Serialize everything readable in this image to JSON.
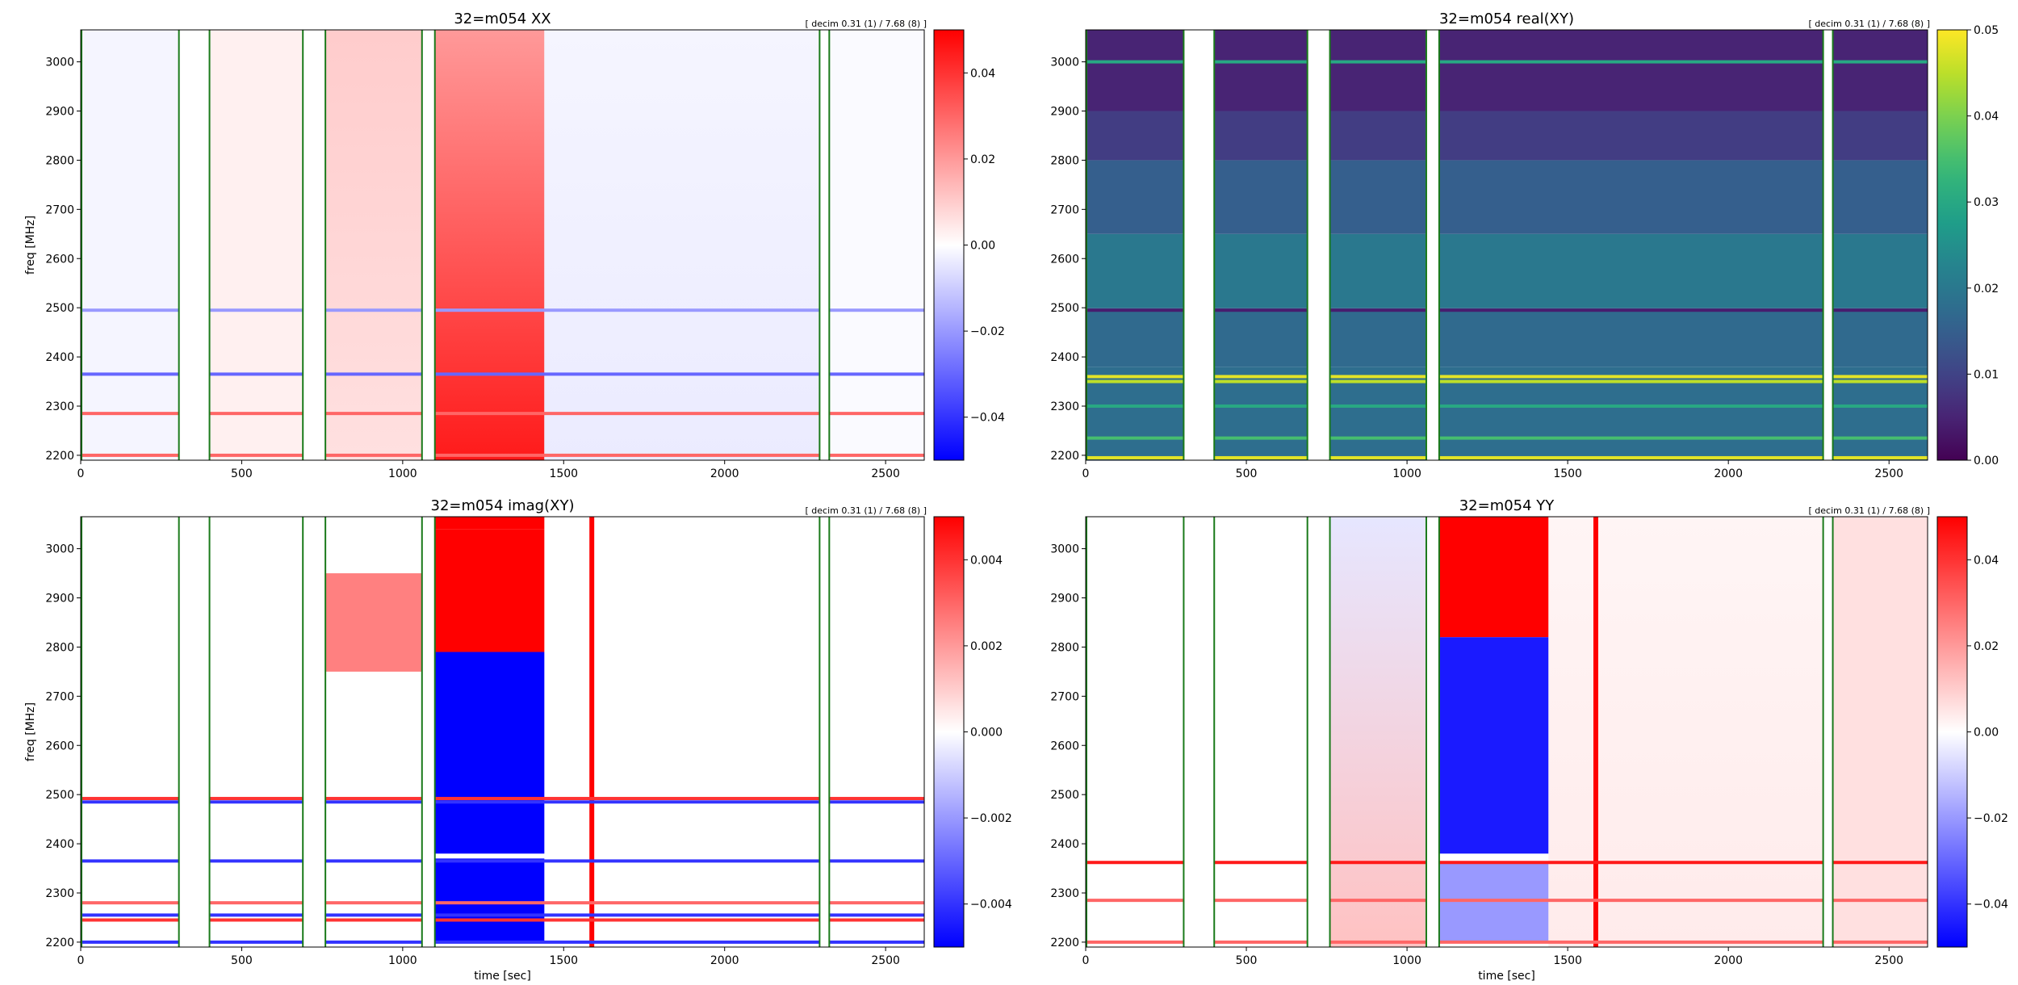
{
  "chart_data": [
    {
      "type": "heatmap",
      "title": "32=m054  XX",
      "note": "[ decim 0.31 (1) / 7.68 (8) ]",
      "xlabel": "",
      "ylabel": "freq [MHz]",
      "xlim": [
        0,
        2620
      ],
      "ylim": [
        2190,
        3065
      ],
      "xticks": [
        "0",
        "500",
        "1000",
        "1500",
        "2000",
        "2500"
      ],
      "yticks": [
        "2200",
        "2300",
        "2400",
        "2500",
        "2600",
        "2700",
        "2800",
        "2900",
        "3000"
      ],
      "colormap": "bwr",
      "clim": [
        -0.05,
        0.05
      ],
      "cticks": [
        {
          "v": 0.04,
          "label": "0.04"
        },
        {
          "v": 0.02,
          "label": "0.02"
        },
        {
          "v": 0.0,
          "label": "0.00"
        },
        {
          "v": -0.02,
          "label": "−0.02"
        },
        {
          "v": -0.04,
          "label": "−0.04"
        }
      ],
      "gaps": [
        [
          305,
          400
        ],
        [
          690,
          760
        ],
        [
          1060,
          1100
        ],
        [
          2295,
          2325
        ]
      ],
      "background": 0.0,
      "blocks": [
        {
          "x0": 0,
          "x1": 305,
          "value": -0.002
        },
        {
          "x0": 400,
          "x1": 690,
          "value": 0.003
        },
        {
          "x0": 760,
          "x1": 1060,
          "value": 0.006,
          "gradient_to": 0.01
        },
        {
          "x0": 1100,
          "x1": 1440,
          "value": 0.045,
          "gradient_to": 0.02
        },
        {
          "x0": 1440,
          "x1": 2295,
          "value": -0.004,
          "gradient_to": -0.002
        },
        {
          "x0": 2325,
          "x1": 2620,
          "value": -0.001
        }
      ],
      "lines": [
        {
          "y": 2495,
          "value": -0.02
        },
        {
          "y": 2365,
          "value": -0.03
        },
        {
          "y": 2285,
          "value": 0.03
        },
        {
          "y": 2200,
          "value": 0.03
        }
      ]
    },
    {
      "type": "heatmap",
      "title": "32=m054  real(XY)",
      "note": "[ decim 0.31 (1) / 7.68 (8) ]",
      "xlabel": "",
      "ylabel": "",
      "xlim": [
        0,
        2620
      ],
      "ylim": [
        2190,
        3065
      ],
      "xticks": [
        "0",
        "500",
        "1000",
        "1500",
        "2000",
        "2500"
      ],
      "yticks": [
        "2200",
        "2300",
        "2400",
        "2500",
        "2600",
        "2700",
        "2800",
        "2900",
        "3000"
      ],
      "colormap": "viridis",
      "clim": [
        0.0,
        0.05
      ],
      "cticks": [
        {
          "v": 0.05,
          "label": "0.05"
        },
        {
          "v": 0.04,
          "label": "0.04"
        },
        {
          "v": 0.03,
          "label": "0.03"
        },
        {
          "v": 0.02,
          "label": "0.02"
        },
        {
          "v": 0.01,
          "label": "0.01"
        },
        {
          "v": 0.0,
          "label": "0.00"
        }
      ],
      "gaps": [
        [
          305,
          400
        ],
        [
          690,
          760
        ],
        [
          1060,
          1100
        ],
        [
          2295,
          2325
        ]
      ],
      "bands": [
        {
          "y0": 2190,
          "y1": 2380,
          "value": 0.018
        },
        {
          "y0": 2380,
          "y1": 2500,
          "value": 0.017
        },
        {
          "y0": 2500,
          "y1": 2650,
          "value": 0.02
        },
        {
          "y0": 2650,
          "y1": 2800,
          "value": 0.015
        },
        {
          "y0": 2800,
          "y1": 2900,
          "value": 0.009
        },
        {
          "y0": 2900,
          "y1": 3065,
          "value": 0.005
        }
      ],
      "lines": [
        {
          "y": 3000,
          "value": 0.03
        },
        {
          "y": 2360,
          "value": 0.048
        },
        {
          "y": 2350,
          "value": 0.045
        },
        {
          "y": 2300,
          "value": 0.03
        },
        {
          "y": 2235,
          "value": 0.035
        },
        {
          "y": 2195,
          "value": 0.048
        },
        {
          "y": 2495,
          "value": 0.004
        }
      ]
    },
    {
      "type": "heatmap",
      "title": "32=m054  imag(XY)",
      "note": "[ decim 0.31 (1) / 7.68 (8) ]",
      "xlabel": "time [sec]",
      "ylabel": "freq [MHz]",
      "xlim": [
        0,
        2620
      ],
      "ylim": [
        2190,
        3065
      ],
      "xticks": [
        "0",
        "500",
        "1000",
        "1500",
        "2000",
        "2500"
      ],
      "yticks": [
        "2200",
        "2300",
        "2400",
        "2500",
        "2600",
        "2700",
        "2800",
        "2900",
        "3000"
      ],
      "colormap": "bwr",
      "clim": [
        -0.005,
        0.005
      ],
      "cticks": [
        {
          "v": 0.004,
          "label": "0.004"
        },
        {
          "v": 0.002,
          "label": "0.002"
        },
        {
          "v": 0.0,
          "label": "0.000"
        },
        {
          "v": -0.002,
          "label": "−0.002"
        },
        {
          "v": -0.004,
          "label": "−0.004"
        }
      ],
      "gaps": [
        [
          305,
          400
        ],
        [
          690,
          760
        ],
        [
          1060,
          1100
        ],
        [
          2295,
          2325
        ]
      ],
      "background": 0.0,
      "rects": [
        {
          "x0": 760,
          "x1": 1060,
          "y0": 2750,
          "y1": 2950,
          "value": 0.0025
        },
        {
          "x0": 1100,
          "x1": 1440,
          "y0": 2790,
          "y1": 3040,
          "value": 0.005
        },
        {
          "x0": 1100,
          "x1": 1440,
          "y0": 3040,
          "y1": 3065,
          "value": 0.005
        },
        {
          "x0": 1100,
          "x1": 1440,
          "y0": 2380,
          "y1": 2790,
          "value": -0.005
        },
        {
          "x0": 1100,
          "x1": 1440,
          "y0": 2200,
          "y1": 2370,
          "value": -0.005
        },
        {
          "x0": 1580,
          "x1": 1595,
          "y0": 2190,
          "y1": 3065,
          "value": 0.005
        }
      ],
      "lines": [
        {
          "y": 2492,
          "value": 0.004
        },
        {
          "y": 2485,
          "value": -0.004
        },
        {
          "y": 2365,
          "value": -0.004
        },
        {
          "y": 2280,
          "value": 0.003
        },
        {
          "y": 2255,
          "value": -0.004
        },
        {
          "y": 2245,
          "value": 0.004
        },
        {
          "y": 2200,
          "value": -0.004
        }
      ]
    },
    {
      "type": "heatmap",
      "title": "32=m054  YY",
      "note": "[ decim 0.31 (1) / 7.68 (8) ]",
      "xlabel": "time [sec]",
      "ylabel": "",
      "xlim": [
        0,
        2620
      ],
      "ylim": [
        2190,
        3065
      ],
      "xticks": [
        "0",
        "500",
        "1000",
        "1500",
        "2000",
        "2500"
      ],
      "yticks": [
        "2200",
        "2300",
        "2400",
        "2500",
        "2600",
        "2700",
        "2800",
        "2900",
        "3000"
      ],
      "colormap": "bwr",
      "clim": [
        -0.05,
        0.05
      ],
      "cticks": [
        {
          "v": 0.04,
          "label": "0.04"
        },
        {
          "v": 0.02,
          "label": "0.02"
        },
        {
          "v": 0.0,
          "label": "0.00"
        },
        {
          "v": -0.02,
          "label": "−0.02"
        },
        {
          "v": -0.04,
          "label": "−0.04"
        }
      ],
      "gaps": [
        [
          305,
          400
        ],
        [
          690,
          760
        ],
        [
          1060,
          1100
        ],
        [
          2295,
          2325
        ]
      ],
      "background": 0.0,
      "blocks": [
        {
          "x0": 760,
          "x1": 1060,
          "value": 0.012,
          "gradient_to": -0.005
        },
        {
          "x0": 1440,
          "x1": 2295,
          "value": 0.004,
          "gradient_to": 0.002
        },
        {
          "x0": 2325,
          "x1": 2620,
          "value": 0.006
        }
      ],
      "rects": [
        {
          "x0": 1100,
          "x1": 1440,
          "y0": 2820,
          "y1": 3065,
          "value": 0.05
        },
        {
          "x0": 1100,
          "x1": 1440,
          "y0": 2380,
          "y1": 2820,
          "value": -0.045
        },
        {
          "x0": 1100,
          "x1": 1440,
          "y0": 2200,
          "y1": 2360,
          "value": -0.02
        },
        {
          "x0": 1580,
          "x1": 1595,
          "y0": 2190,
          "y1": 3065,
          "value": 0.05
        }
      ],
      "lines": [
        {
          "y": 2362,
          "value": 0.045
        },
        {
          "y": 2285,
          "value": 0.03
        },
        {
          "y": 2200,
          "value": 0.03
        }
      ]
    }
  ]
}
